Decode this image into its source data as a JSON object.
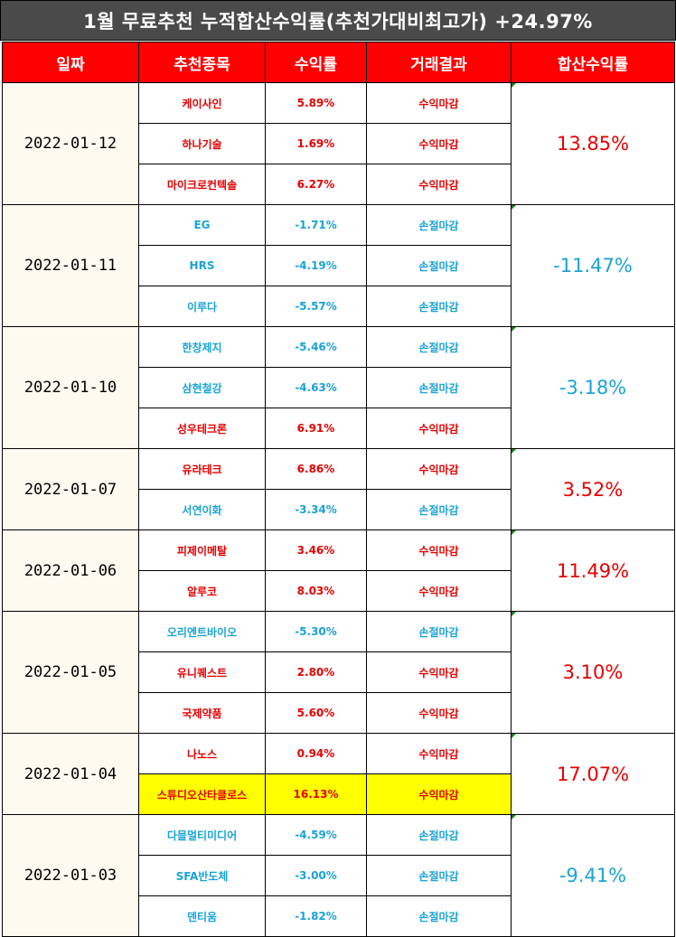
{
  "title": "1월 무료추천 누적합산수익률(추천가대비최고가) +24.97%",
  "headers": [
    "일짜",
    "추천종목",
    "수익률",
    "거래결과",
    "합산수익률"
  ],
  "colors": {
    "positive": "#e60000",
    "negative": "#1aa3d6",
    "header_bg": "#ff0000",
    "title_bg": "#4a4a4a",
    "highlight": "#ffff00"
  },
  "groups": [
    {
      "date": "2022-01-12",
      "total": "13.85%",
      "items": [
        {
          "name": "케이사인",
          "ret": "5.89%",
          "result": "수익마감"
        },
        {
          "name": "하나기술",
          "ret": "1.69%",
          "result": "수익마감"
        },
        {
          "name": "마이크로컨텍솔",
          "ret": "6.27%",
          "result": "수익마감"
        }
      ]
    },
    {
      "date": "2022-01-11",
      "total": "-11.47%",
      "items": [
        {
          "name": "EG",
          "ret": "-1.71%",
          "result": "손절마감"
        },
        {
          "name": "HRS",
          "ret": "-4.19%",
          "result": "손절마감"
        },
        {
          "name": "이루다",
          "ret": "-5.57%",
          "result": "손절마감"
        }
      ]
    },
    {
      "date": "2022-01-10",
      "total": "-3.18%",
      "items": [
        {
          "name": "한창제지",
          "ret": "-5.46%",
          "result": "손절마감"
        },
        {
          "name": "삼현철강",
          "ret": "-4.63%",
          "result": "손절마감"
        },
        {
          "name": "성우테크론",
          "ret": "6.91%",
          "result": "수익마감"
        }
      ]
    },
    {
      "date": "2022-01-07",
      "total": "3.52%",
      "items": [
        {
          "name": "유라테크",
          "ret": "6.86%",
          "result": "수익마감"
        },
        {
          "name": "서연이화",
          "ret": "-3.34%",
          "result": "손절마감"
        }
      ]
    },
    {
      "date": "2022-01-06",
      "total": "11.49%",
      "items": [
        {
          "name": "피제이메탈",
          "ret": "3.46%",
          "result": "수익마감"
        },
        {
          "name": "알루코",
          "ret": "8.03%",
          "result": "수익마감"
        }
      ]
    },
    {
      "date": "2022-01-05",
      "total": "3.10%",
      "items": [
        {
          "name": "오리엔트바이오",
          "ret": "-5.30%",
          "result": "손절마감"
        },
        {
          "name": "유니퀘스트",
          "ret": "2.80%",
          "result": "수익마감"
        },
        {
          "name": "국제약품",
          "ret": "5.60%",
          "result": "수익마감"
        }
      ]
    },
    {
      "date": "2022-01-04",
      "total": "17.07%",
      "items": [
        {
          "name": "나노스",
          "ret": "0.94%",
          "result": "수익마감"
        },
        {
          "name": "스튜디오산타클로스",
          "ret": "16.13%",
          "result": "수익마감",
          "highlight": true
        }
      ]
    },
    {
      "date": "2022-01-03",
      "total": "-9.41%",
      "items": [
        {
          "name": "다믈멀티미디어",
          "ret": "-4.59%",
          "result": "손절마감"
        },
        {
          "name": "SFA반도체",
          "ret": "-3.00%",
          "result": "손절마감"
        },
        {
          "name": "덴티움",
          "ret": "-1.82%",
          "result": "손절마감"
        }
      ]
    }
  ]
}
